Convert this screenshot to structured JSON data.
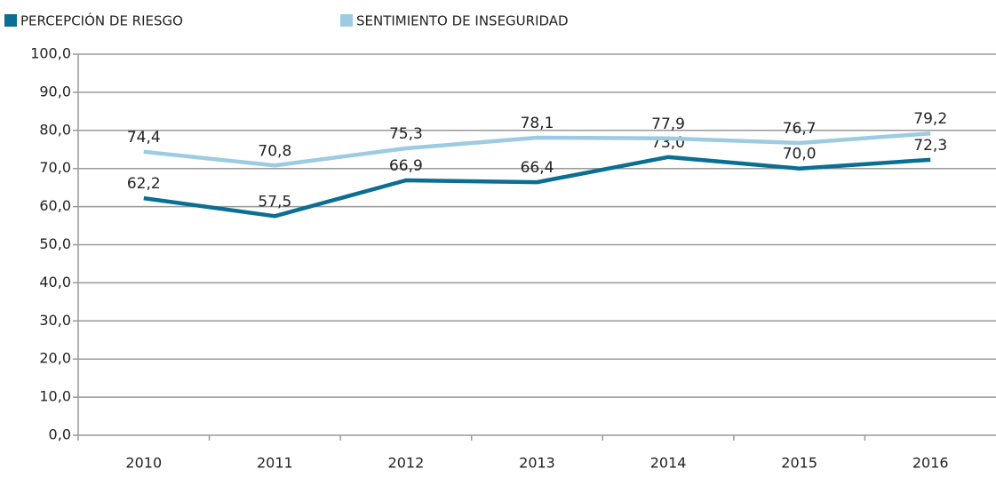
{
  "chart_data": {
    "type": "line",
    "categories": [
      "2010",
      "2011",
      "2012",
      "2013",
      "2014",
      "2015",
      "2016"
    ],
    "series": [
      {
        "name": "PERCEPCIÓN DE RIESGO",
        "color": "#0b6e92",
        "values": [
          62.2,
          57.5,
          66.9,
          66.4,
          73.0,
          70.0,
          72.3
        ],
        "value_labels": [
          "62,2",
          "57,5",
          "66,9",
          "66,4",
          "73,0",
          "70,0",
          "72,3"
        ]
      },
      {
        "name": "SENTIMIENTO DE INSEGURIDAD",
        "color": "#9dcbe1",
        "values": [
          74.4,
          70.8,
          75.3,
          78.1,
          77.9,
          76.7,
          79.2
        ],
        "value_labels": [
          "74,4",
          "70,8",
          "75,3",
          "78,1",
          "77,9",
          "76,7",
          "79,2"
        ]
      }
    ],
    "ylim": [
      0,
      100
    ],
    "yticks": [
      {
        "value": 0,
        "label": "0,0"
      },
      {
        "value": 10,
        "label": "10,0"
      },
      {
        "value": 20,
        "label": "20,0"
      },
      {
        "value": 30,
        "label": "30,0"
      },
      {
        "value": 40,
        "label": "40,0"
      },
      {
        "value": 50,
        "label": "50,0"
      },
      {
        "value": 60,
        "label": "60,0"
      },
      {
        "value": 70,
        "label": "70,0"
      },
      {
        "value": 80,
        "label": "80,0"
      },
      {
        "value": 90,
        "label": "90,0"
      },
      {
        "value": 100,
        "label": "100,0"
      }
    ],
    "grid": true,
    "legend": "top"
  }
}
